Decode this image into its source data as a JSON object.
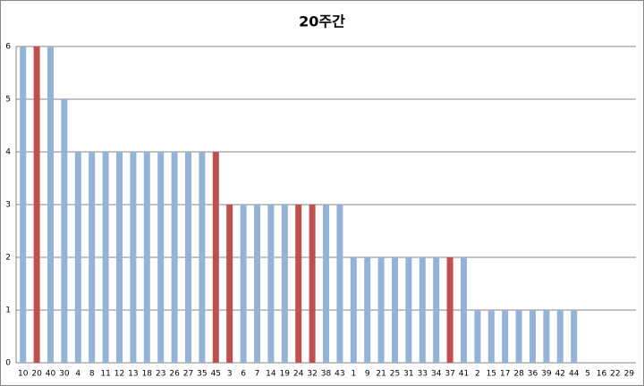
{
  "chart_data": {
    "type": "bar",
    "title": "20주간",
    "categories": [
      "10",
      "20",
      "40",
      "30",
      "4",
      "8",
      "11",
      "12",
      "13",
      "18",
      "23",
      "26",
      "27",
      "35",
      "45",
      "3",
      "6",
      "7",
      "14",
      "19",
      "24",
      "32",
      "38",
      "43",
      "1",
      "9",
      "21",
      "25",
      "31",
      "33",
      "34",
      "37",
      "41",
      "2",
      "15",
      "17",
      "28",
      "36",
      "39",
      "42",
      "44",
      "5",
      "16",
      "22",
      "29"
    ],
    "values": [
      6,
      6,
      6,
      5,
      4,
      4,
      4,
      4,
      4,
      4,
      4,
      4,
      4,
      4,
      4,
      3,
      3,
      3,
      3,
      3,
      3,
      3,
      3,
      3,
      2,
      2,
      2,
      2,
      2,
      2,
      2,
      2,
      2,
      1,
      1,
      1,
      1,
      1,
      1,
      1,
      1,
      0,
      0,
      0,
      0
    ],
    "colors": [
      "#95b3d7",
      "#c0504d",
      "#95b3d7",
      "#95b3d7",
      "#95b3d7",
      "#95b3d7",
      "#95b3d7",
      "#95b3d7",
      "#95b3d7",
      "#95b3d7",
      "#95b3d7",
      "#95b3d7",
      "#95b3d7",
      "#95b3d7",
      "#c0504d",
      "#c0504d",
      "#95b3d7",
      "#95b3d7",
      "#95b3d7",
      "#95b3d7",
      "#c0504d",
      "#c0504d",
      "#95b3d7",
      "#95b3d7",
      "#95b3d7",
      "#95b3d7",
      "#95b3d7",
      "#95b3d7",
      "#95b3d7",
      "#95b3d7",
      "#95b3d7",
      "#c0504d",
      "#95b3d7",
      "#95b3d7",
      "#95b3d7",
      "#95b3d7",
      "#95b3d7",
      "#95b3d7",
      "#95b3d7",
      "#95b3d7",
      "#95b3d7",
      "#95b3d7",
      "#95b3d7",
      "#95b3d7",
      "#95b3d7"
    ],
    "ylim": [
      0,
      6
    ],
    "yticks": [
      0,
      1,
      2,
      3,
      4,
      5,
      6
    ],
    "grid": true
  }
}
